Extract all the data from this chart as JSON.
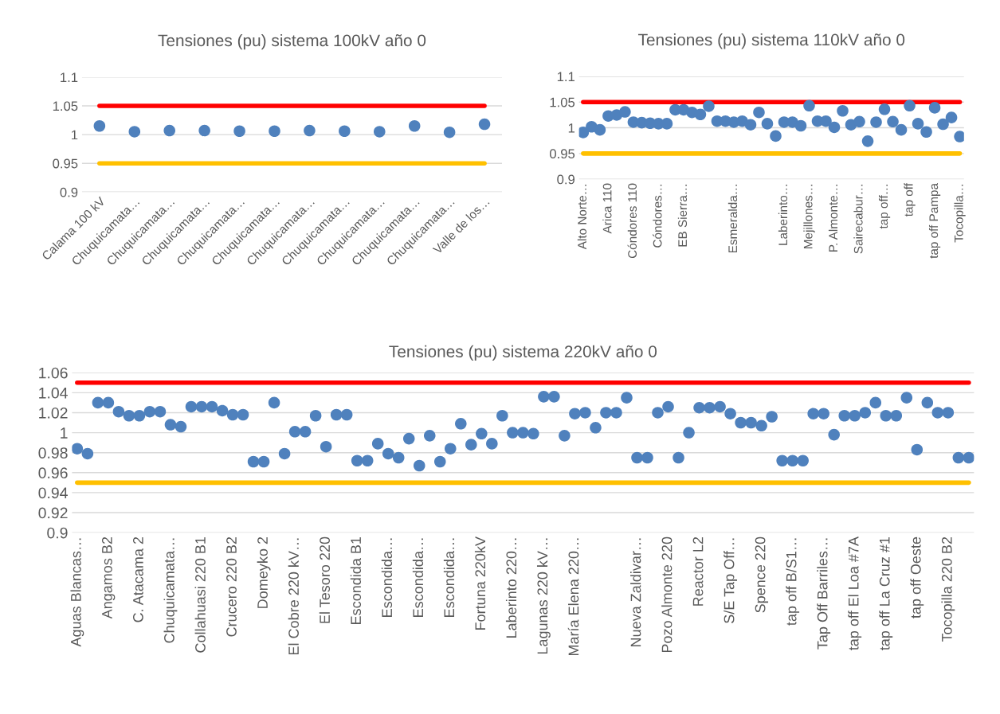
{
  "chart_data": [
    {
      "type": "scatter",
      "title": "Tensiones (pu) sistema 100kV año 0",
      "categories": [
        "Calama 100 kV",
        "Chuquicamata…",
        "Chuquicamata…",
        "Chuquicamata…",
        "Chuquicamata…",
        "Chuquicamata…",
        "Chuquicamata…",
        "Chuquicamata…",
        "Chuquicamata…",
        "Chuquicamata…",
        "Chuquicamata…",
        "Valle de los…"
      ],
      "series": [
        {
          "color": "#4f81bd",
          "values": [
            1.015,
            1.005,
            1.007,
            1.007,
            1.006,
            1.006,
            1.007,
            1.006,
            1.005,
            1.015,
            1.004,
            1.018
          ]
        }
      ],
      "ylim": [
        0.9,
        1.1
      ],
      "yticks": [
        0.9,
        0.95,
        1,
        1.05,
        1.1
      ],
      "grid": "y",
      "marker": "circle",
      "ref_lines": [
        {
          "axis": "y",
          "value": 1.05,
          "color": "#ff0000"
        },
        {
          "axis": "y",
          "value": 0.95,
          "color": "#ffc000"
        }
      ]
    },
    {
      "type": "scatter",
      "title": "Tensiones (pu) sistema 110kV año 0",
      "categories": [
        "Alto Norte…",
        null,
        null,
        "Arica 110",
        null,
        null,
        "Cóndores 110",
        null,
        null,
        "Cóndores…",
        null,
        null,
        "EB Sierra…",
        null,
        null,
        null,
        null,
        null,
        "Esmeralda…",
        null,
        null,
        null,
        null,
        null,
        "Laberinto…",
        null,
        null,
        "Mejillones…",
        null,
        null,
        "P. Almonte…",
        null,
        null,
        "Sairecabur…",
        null,
        null,
        "tap off…",
        null,
        null,
        "tap off",
        null,
        null,
        "tap off Pampa",
        null,
        null,
        "Tocopilla…"
      ],
      "series": [
        {
          "color": "#4f81bd",
          "values": [
            0.991,
            1.002,
            0.996,
            1.023,
            1.025,
            1.031,
            1.011,
            1.01,
            1.009,
            1.008,
            1.008,
            1.035,
            1.035,
            1.03,
            1.026,
            1.042,
            1.013,
            1.013,
            1.011,
            1.013,
            1.006,
            1.03,
            1.008,
            0.984,
            1.011,
            1.011,
            1.004,
            1.043,
            1.013,
            1.013,
            1.001,
            1.033,
            1.006,
            1.012,
            0.974,
            1.011,
            1.036,
            1.012,
            0.996,
            1.043,
            1.008,
            0.992,
            1.039,
            1.007,
            1.02,
            0.983
          ]
        }
      ],
      "ylim": [
        0.9,
        1.1
      ],
      "yticks": [
        0.9,
        0.95,
        1,
        1.05,
        1.1
      ],
      "grid": "y",
      "marker": "circle",
      "ref_lines": [
        {
          "axis": "y",
          "value": 1.05,
          "color": "#ff0000"
        },
        {
          "axis": "y",
          "value": 0.95,
          "color": "#ffc000"
        }
      ]
    },
    {
      "type": "scatter",
      "title": "Tensiones (pu) sistema 220kV año 0",
      "categories": [
        "Aguas Blancas…",
        null,
        null,
        "Angamos B2",
        null,
        null,
        "C. Atacama 2",
        null,
        null,
        "Chuquicamata…",
        null,
        null,
        "Collahuasi 220 B1",
        null,
        null,
        "Crucero 220 B2",
        null,
        null,
        "Domeyko 2",
        null,
        null,
        "El Cobre 220 kV…",
        null,
        null,
        "El Tesoro 220",
        null,
        null,
        "Escondida B1",
        null,
        null,
        "Escondida…",
        null,
        null,
        "Escondida…",
        null,
        null,
        "Escondida…",
        null,
        null,
        "Fortuna 220kV",
        null,
        null,
        "Laberinto 220…",
        null,
        null,
        "Lagunas 220 kV…",
        null,
        null,
        "María Elena 220…",
        null,
        null,
        null,
        null,
        null,
        "Nueva Zaldivar…",
        null,
        null,
        "Pozo Almonte 220",
        null,
        null,
        "Reactor L2",
        null,
        null,
        "S/E Tap Off…",
        null,
        null,
        "Spence 220",
        null,
        null,
        "tap off B/S1…",
        null,
        null,
        "Tap Off Barriles…",
        null,
        null,
        "tap off El Loa #7A",
        null,
        null,
        "tap off La Cruz #1",
        null,
        null,
        "tap off Oeste",
        null,
        null,
        "Tocopilla 220 B2",
        null,
        null
      ],
      "series": [
        {
          "color": "#4f81bd",
          "values": [
            0.984,
            0.979,
            1.03,
            1.03,
            1.021,
            1.017,
            1.017,
            1.021,
            1.021,
            1.008,
            1.006,
            1.026,
            1.026,
            1.026,
            1.022,
            1.018,
            1.018,
            0.971,
            0.971,
            1.03,
            0.979,
            1.001,
            1.001,
            1.017,
            0.986,
            1.018,
            1.018,
            0.972,
            0.972,
            0.989,
            0.979,
            0.975,
            0.994,
            0.967,
            0.997,
            0.971,
            0.984,
            1.009,
            0.988,
            0.999,
            0.989,
            1.017,
            1.0,
            1.0,
            0.999,
            1.036,
            1.036,
            0.997,
            1.019,
            1.02,
            1.005,
            1.02,
            1.02,
            1.035,
            0.975,
            0.975,
            1.02,
            1.026,
            0.975,
            1.0,
            1.025,
            1.025,
            1.026,
            1.019,
            1.01,
            1.01,
            1.007,
            1.016,
            0.972,
            0.972,
            0.972,
            1.019,
            1.019,
            0.998,
            1.017,
            1.017,
            1.02,
            1.03,
            1.017,
            1.017,
            1.035,
            0.983,
            1.03,
            1.02,
            1.02,
            0.975,
            0.975
          ]
        }
      ],
      "ylim": [
        0.9,
        1.06
      ],
      "yticks": [
        0.9,
        0.92,
        0.94,
        0.96,
        0.98,
        1,
        1.02,
        1.04,
        1.06
      ],
      "grid": "y",
      "marker": "circle",
      "ref_lines": [
        {
          "axis": "y",
          "value": 1.05,
          "color": "#ff0000"
        },
        {
          "axis": "y",
          "value": 0.95,
          "color": "#ffc000"
        }
      ]
    }
  ]
}
